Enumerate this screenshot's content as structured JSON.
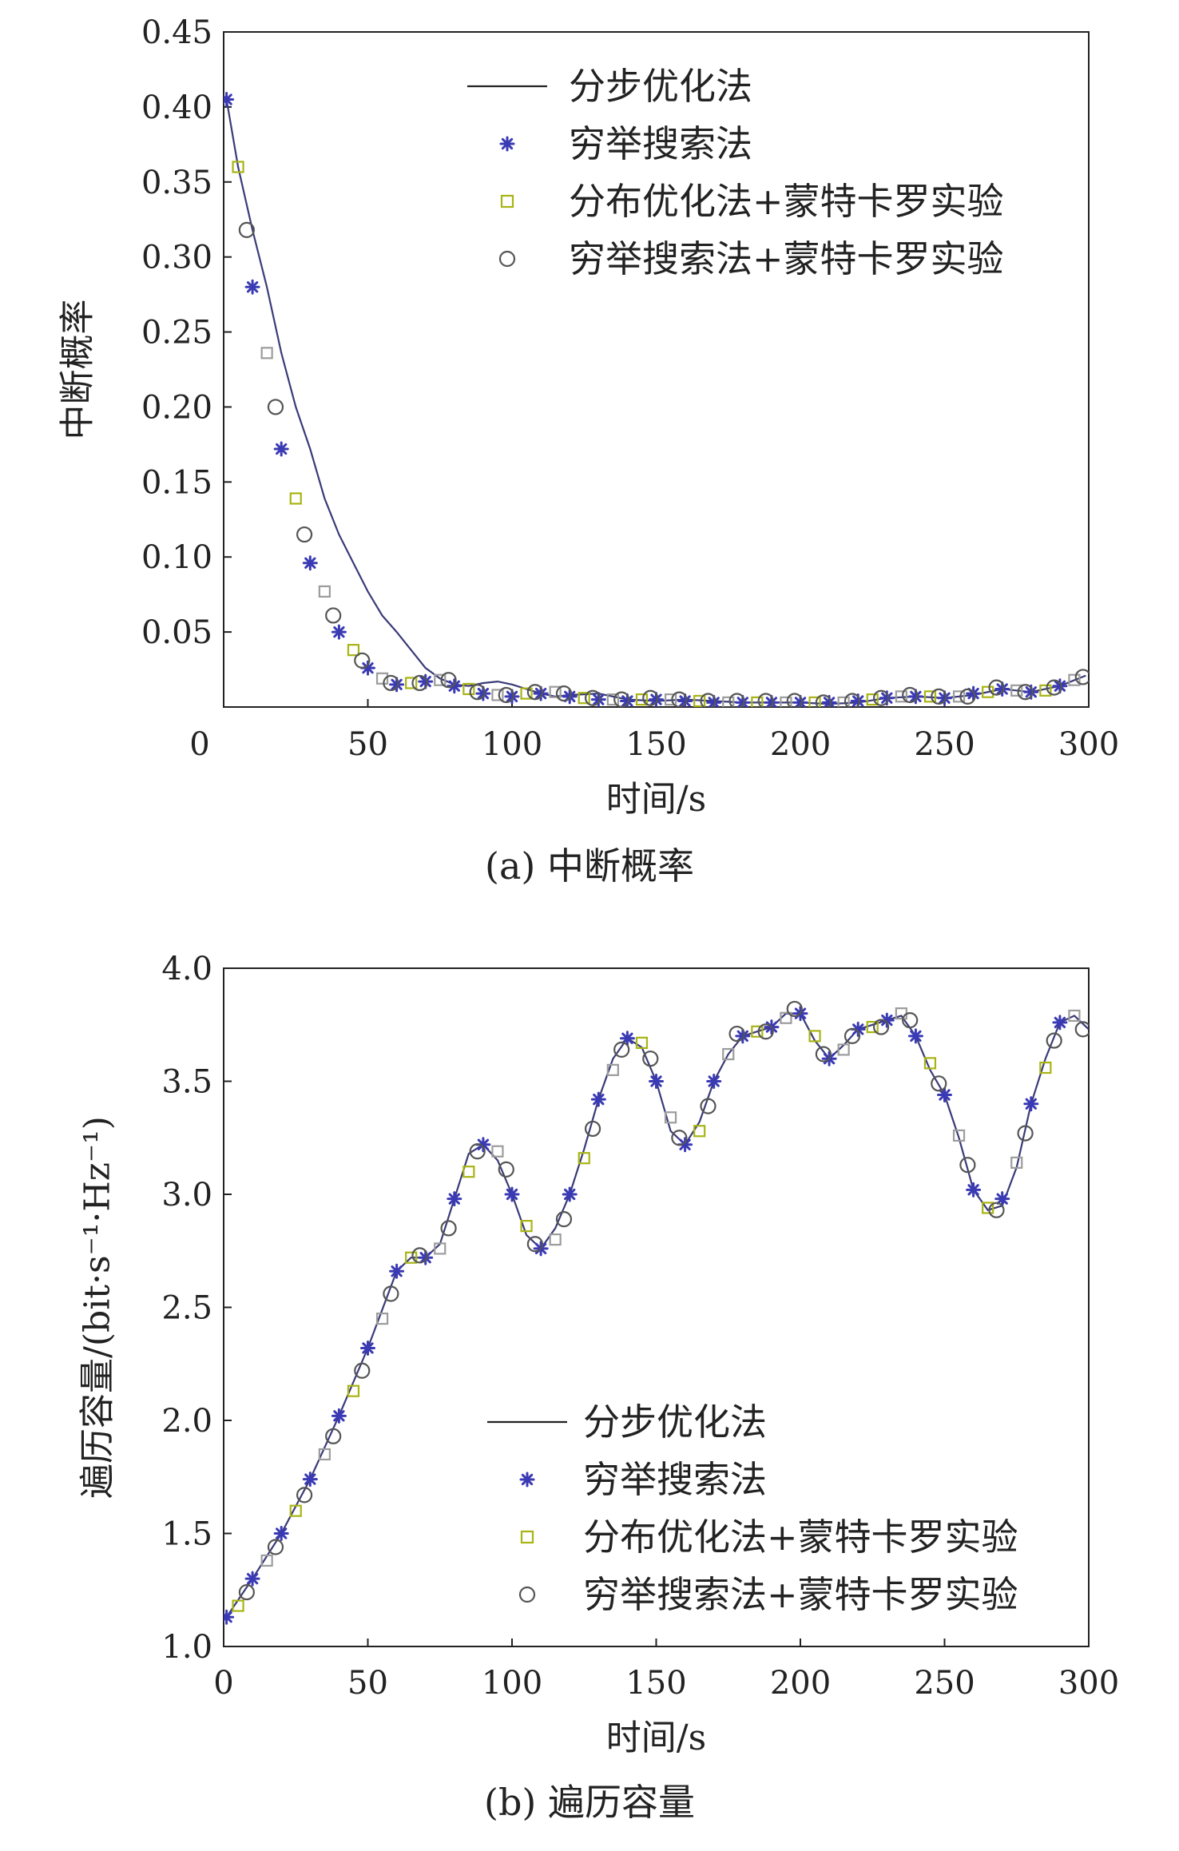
{
  "colors": {
    "line": "#3a3a78",
    "star": "#3a3ab4",
    "square": "#a8b414",
    "square_alt": "#9c9c9c",
    "circle": "#555555",
    "axis": "#222222"
  },
  "legend_markers": {
    "line": "line",
    "star": "star-icon",
    "square": "square-icon",
    "circle": "circle-icon"
  },
  "chart_data": [
    {
      "type": "line",
      "caption": "(a) 中断概率",
      "title": "",
      "xlabel": "时间/s",
      "ylabel": "中断概率",
      "xlim": [
        0,
        300
      ],
      "ylim": [
        0,
        0.45
      ],
      "xticks": [
        0,
        50,
        100,
        150,
        200,
        250,
        300
      ],
      "xtick_labels": [
        "0",
        "50",
        "100",
        "150",
        "200",
        "250",
        "300"
      ],
      "yticks": [
        0.05,
        0.1,
        0.15,
        0.2,
        0.25,
        0.3,
        0.35,
        0.4,
        0.45
      ],
      "ytick_labels": [
        "0.05",
        "0.10",
        "0.15",
        "0.20",
        "0.25",
        "0.30",
        "0.35",
        "0.40",
        "0.45"
      ],
      "legend_position": "top-right",
      "legend": [
        "分步优化法",
        "穷举搜索法",
        "分布优化法+蒙特卡罗实验",
        "穷举搜索法+蒙特卡罗实验"
      ],
      "curve": {
        "x": [
          1,
          5,
          10,
          15,
          20,
          25,
          30,
          35,
          40,
          45,
          50,
          55,
          60,
          65,
          70,
          75,
          80,
          85,
          90,
          95,
          100,
          105,
          110,
          115,
          120,
          130,
          140,
          150,
          160,
          170,
          180,
          190,
          200,
          210,
          220,
          230,
          240,
          250,
          260,
          270,
          280,
          290,
          299
        ],
        "y": [
          0.405,
          0.36,
          0.318,
          0.28,
          0.236,
          0.2,
          0.172,
          0.139,
          0.115,
          0.096,
          0.077,
          0.061,
          0.05,
          0.038,
          0.026,
          0.019,
          0.015,
          0.014,
          0.016,
          0.017,
          0.015,
          0.012,
          0.009,
          0.007,
          0.008,
          0.009,
          0.005,
          0.004,
          0.005,
          0.004,
          0.003,
          0.003,
          0.003,
          0.002,
          0.003,
          0.006,
          0.007,
          0.006,
          0.008,
          0.012,
          0.01,
          0.014,
          0.021
        ]
      },
      "series": [
        {
          "name": "分步优化法",
          "marker": "line",
          "x": [],
          "y": []
        },
        {
          "name": "穷举搜索法",
          "marker": "star",
          "x": [
            1,
            10,
            20,
            30,
            40,
            50,
            60,
            70,
            80,
            90,
            100,
            110,
            120,
            130,
            140,
            150,
            160,
            170,
            180,
            190,
            200,
            210,
            220,
            230,
            240,
            250,
            260,
            270,
            280,
            290
          ],
          "y": [
            0.405,
            0.28,
            0.172,
            0.096,
            0.05,
            0.026,
            0.015,
            0.017,
            0.014,
            0.009,
            0.007,
            0.009,
            0.007,
            0.005,
            0.004,
            0.005,
            0.004,
            0.003,
            0.003,
            0.003,
            0.003,
            0.003,
            0.004,
            0.006,
            0.007,
            0.006,
            0.009,
            0.012,
            0.01,
            0.014
          ]
        },
        {
          "name": "分布优化法+蒙特卡罗实验",
          "marker": "square",
          "x": [
            5,
            15,
            25,
            35,
            45,
            55,
            65,
            75,
            85,
            95,
            105,
            115,
            125,
            135,
            145,
            155,
            165,
            175,
            185,
            195,
            205,
            215,
            225,
            235,
            245,
            255,
            265,
            275,
            285,
            295
          ],
          "y": [
            0.36,
            0.236,
            0.139,
            0.077,
            0.038,
            0.019,
            0.016,
            0.018,
            0.012,
            0.008,
            0.009,
            0.01,
            0.006,
            0.005,
            0.005,
            0.005,
            0.004,
            0.003,
            0.003,
            0.003,
            0.003,
            0.003,
            0.005,
            0.007,
            0.007,
            0.007,
            0.01,
            0.011,
            0.011,
            0.018
          ]
        },
        {
          "name": "穷举搜索法+蒙特卡罗实验",
          "marker": "circle",
          "x": [
            8,
            18,
            28,
            38,
            48,
            58,
            68,
            78,
            88,
            98,
            108,
            118,
            128,
            138,
            148,
            158,
            168,
            178,
            188,
            198,
            208,
            218,
            228,
            238,
            248,
            258,
            268,
            278,
            288,
            298
          ],
          "y": [
            0.318,
            0.2,
            0.115,
            0.061,
            0.031,
            0.016,
            0.016,
            0.018,
            0.01,
            0.008,
            0.01,
            0.009,
            0.006,
            0.005,
            0.006,
            0.005,
            0.004,
            0.004,
            0.004,
            0.004,
            0.003,
            0.004,
            0.006,
            0.008,
            0.007,
            0.007,
            0.013,
            0.01,
            0.013,
            0.02
          ]
        }
      ]
    },
    {
      "type": "line",
      "caption": "(b) 遍历容量",
      "title": "",
      "xlabel": "时间/s",
      "ylabel": "遍历容量/(bit·s⁻¹·Hz⁻¹)",
      "xlim": [
        0,
        300
      ],
      "ylim": [
        1.0,
        4.0
      ],
      "xticks": [
        0,
        50,
        100,
        150,
        200,
        250,
        300
      ],
      "xtick_labels": [
        "0",
        "50",
        "100",
        "150",
        "200",
        "250",
        "300"
      ],
      "yticks": [
        1.0,
        1.5,
        2.0,
        2.5,
        3.0,
        3.5,
        4.0
      ],
      "ytick_labels": [
        "1.0",
        "1.5",
        "2.0",
        "2.5",
        "3.0",
        "3.5",
        "4.0"
      ],
      "legend_position": "bottom-right",
      "legend": [
        "分步优化法",
        "穷举搜索法",
        "分布优化法+蒙特卡罗实验",
        "穷举搜索法+蒙特卡罗实验"
      ],
      "curve": {
        "x": [
          1,
          10,
          20,
          30,
          40,
          50,
          60,
          65,
          70,
          75,
          80,
          85,
          90,
          95,
          100,
          105,
          110,
          115,
          120,
          125,
          130,
          135,
          140,
          145,
          150,
          155,
          160,
          165,
          170,
          175,
          180,
          185,
          190,
          195,
          200,
          205,
          210,
          215,
          220,
          225,
          230,
          235,
          240,
          245,
          250,
          255,
          260,
          265,
          270,
          275,
          280,
          285,
          290,
          295,
          300
        ],
        "y": [
          1.13,
          1.3,
          1.5,
          1.74,
          2.02,
          2.32,
          2.66,
          2.72,
          2.72,
          2.78,
          2.98,
          3.18,
          3.22,
          3.15,
          3.0,
          2.82,
          2.76,
          2.85,
          3.0,
          3.2,
          3.42,
          3.6,
          3.69,
          3.65,
          3.5,
          3.28,
          3.22,
          3.32,
          3.5,
          3.62,
          3.7,
          3.72,
          3.74,
          3.8,
          3.8,
          3.68,
          3.6,
          3.66,
          3.73,
          3.75,
          3.77,
          3.79,
          3.7,
          3.55,
          3.44,
          3.25,
          3.02,
          2.93,
          2.95,
          3.12,
          3.4,
          3.6,
          3.76,
          3.79,
          3.73
        ]
      },
      "series": [
        {
          "name": "分步优化法",
          "marker": "line",
          "x": [],
          "y": []
        },
        {
          "name": "穷举搜索法",
          "marker": "star",
          "x": [
            1,
            10,
            20,
            30,
            40,
            50,
            60,
            70,
            80,
            90,
            100,
            110,
            120,
            130,
            140,
            150,
            160,
            170,
            180,
            190,
            200,
            210,
            220,
            230,
            240,
            250,
            260,
            270,
            280,
            290
          ],
          "y": [
            1.13,
            1.3,
            1.5,
            1.74,
            2.02,
            2.32,
            2.66,
            2.72,
            2.98,
            3.22,
            3.0,
            2.76,
            3.0,
            3.42,
            3.69,
            3.5,
            3.22,
            3.5,
            3.7,
            3.74,
            3.8,
            3.6,
            3.73,
            3.77,
            3.7,
            3.44,
            3.02,
            2.98,
            3.4,
            3.76
          ]
        },
        {
          "name": "分布优化法+蒙特卡罗实验",
          "marker": "square",
          "x": [
            5,
            15,
            25,
            35,
            45,
            55,
            65,
            75,
            85,
            95,
            105,
            115,
            125,
            135,
            145,
            155,
            165,
            175,
            185,
            195,
            205,
            215,
            225,
            235,
            245,
            255,
            265,
            275,
            285,
            295
          ],
          "y": [
            1.18,
            1.38,
            1.6,
            1.85,
            2.13,
            2.45,
            2.72,
            2.76,
            3.1,
            3.19,
            2.86,
            2.8,
            3.16,
            3.55,
            3.67,
            3.34,
            3.28,
            3.62,
            3.72,
            3.78,
            3.7,
            3.64,
            3.74,
            3.8,
            3.58,
            3.26,
            2.94,
            3.14,
            3.56,
            3.79
          ]
        },
        {
          "name": "穷举搜索法+蒙特卡罗实验",
          "marker": "circle",
          "x": [
            8,
            18,
            28,
            38,
            48,
            58,
            68,
            78,
            88,
            98,
            108,
            118,
            128,
            138,
            148,
            158,
            168,
            178,
            188,
            198,
            208,
            218,
            228,
            238,
            248,
            258,
            268,
            278,
            288,
            298
          ],
          "y": [
            1.24,
            1.44,
            1.67,
            1.93,
            2.22,
            2.56,
            2.73,
            2.85,
            3.19,
            3.11,
            2.78,
            2.89,
            3.29,
            3.64,
            3.6,
            3.25,
            3.39,
            3.71,
            3.72,
            3.82,
            3.62,
            3.7,
            3.74,
            3.77,
            3.49,
            3.13,
            2.93,
            3.27,
            3.68,
            3.73
          ]
        }
      ]
    }
  ]
}
